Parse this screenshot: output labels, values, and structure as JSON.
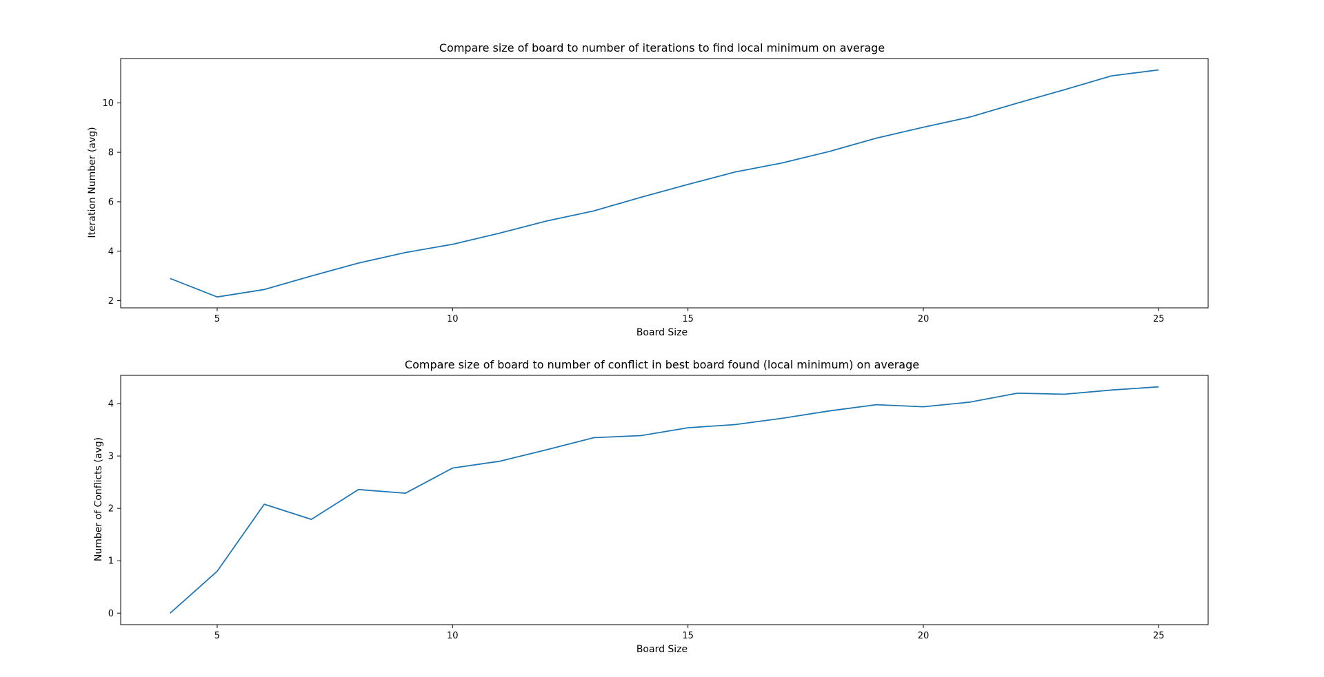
{
  "chart_data": [
    {
      "type": "line",
      "title": "Compare size of board to number of iterations to find local minimum on average",
      "xlabel": "Board Size",
      "ylabel": "Iteration Number (avg)",
      "xlim": [
        2.95,
        26.05
      ],
      "ylim": [
        1.71,
        11.79
      ],
      "xticks": [
        5,
        10,
        15,
        20,
        25
      ],
      "yticks": [
        2,
        4,
        6,
        8,
        10
      ],
      "grid": false,
      "color": "#1f77b4",
      "x": [
        4,
        5,
        6,
        7,
        8,
        9,
        10,
        11,
        12,
        13,
        14,
        15,
        16,
        17,
        18,
        19,
        20,
        21,
        22,
        23,
        24,
        25
      ],
      "y": [
        2.9,
        2.15,
        2.45,
        3.0,
        3.52,
        3.95,
        4.28,
        4.73,
        5.22,
        5.63,
        6.18,
        6.7,
        7.2,
        7.57,
        8.03,
        8.57,
        9.01,
        9.43,
        9.99,
        10.53,
        11.09,
        11.33
      ]
    },
    {
      "type": "line",
      "title": "Compare size of board to number of conflict in best board found (local minimum) on average",
      "xlabel": "Board Size",
      "ylabel": "Number of Conflicts (avg)",
      "xlim": [
        2.95,
        26.05
      ],
      "ylim": [
        -0.22,
        4.54
      ],
      "xticks": [
        5,
        10,
        15,
        20,
        25
      ],
      "yticks": [
        0,
        1,
        2,
        3,
        4
      ],
      "grid": false,
      "color": "#1f77b4",
      "x": [
        4,
        5,
        6,
        7,
        8,
        9,
        10,
        11,
        12,
        13,
        14,
        15,
        16,
        17,
        18,
        19,
        20,
        21,
        22,
        23,
        24,
        25
      ],
      "y": [
        0.0,
        0.8,
        2.08,
        1.79,
        2.36,
        2.29,
        2.77,
        2.9,
        3.12,
        3.35,
        3.39,
        3.54,
        3.6,
        3.72,
        3.86,
        3.98,
        3.94,
        4.03,
        4.2,
        4.18,
        4.26,
        4.32
      ]
    }
  ]
}
